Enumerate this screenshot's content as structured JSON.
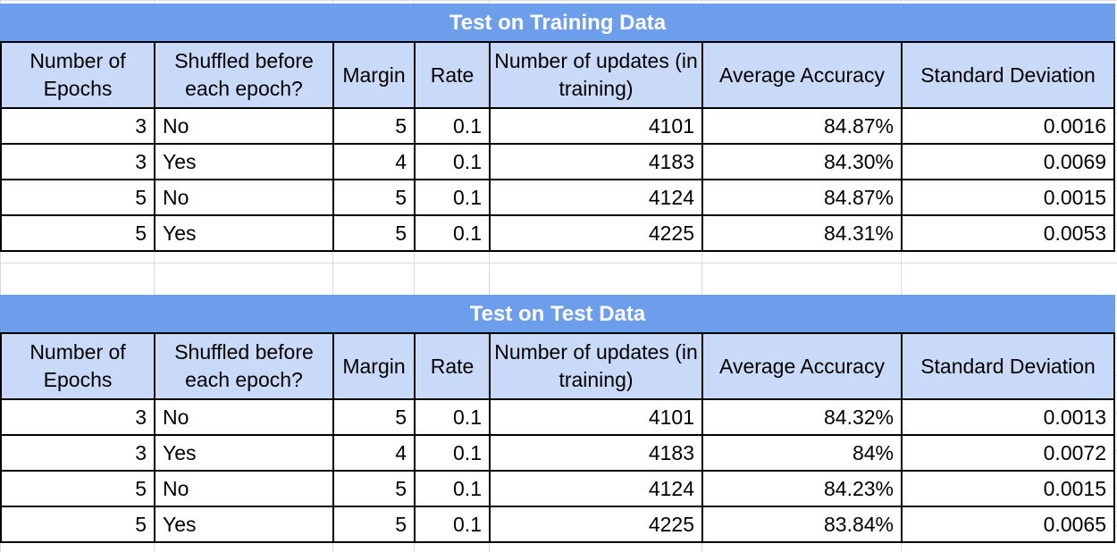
{
  "tables": [
    {
      "title": "Test on Training Data",
      "headers": [
        "Number of Epochs",
        "Shuffled before each epoch?",
        "Margin",
        "Rate",
        "Number of updates (in training)",
        "Average Accuracy",
        "Standard Deviation"
      ],
      "rows": [
        [
          "3",
          "No",
          "5",
          "0.1",
          "4101",
          "84.87%",
          "0.0016"
        ],
        [
          "3",
          "Yes",
          "4",
          "0.1",
          "4183",
          "84.30%",
          "0.0069"
        ],
        [
          "5",
          "No",
          "5",
          "0.1",
          "4124",
          "84.87%",
          "0.0015"
        ],
        [
          "5",
          "Yes",
          "5",
          "0.1",
          "4225",
          "84.31%",
          "0.0053"
        ]
      ]
    },
    {
      "title": "Test on Test Data",
      "headers": [
        "Number of Epochs",
        "Shuffled before each epoch?",
        "Margin",
        "Rate",
        "Number of updates (in training)",
        "Average Accuracy",
        "Standard Deviation"
      ],
      "rows": [
        [
          "3",
          "No",
          "5",
          "0.1",
          "4101",
          "84.32%",
          "0.0013"
        ],
        [
          "3",
          "Yes",
          "4",
          "0.1",
          "4183",
          "84%",
          "0.0072"
        ],
        [
          "5",
          "No",
          "5",
          "0.1",
          "4124",
          "84.23%",
          "0.0015"
        ],
        [
          "5",
          "Yes",
          "5",
          "0.1",
          "4225",
          "83.84%",
          "0.0065"
        ]
      ]
    }
  ],
  "colors": {
    "title_background": "#6d9eeb",
    "header_background": "#c9daf8",
    "gridline": "#dadada",
    "border": "#000000"
  }
}
